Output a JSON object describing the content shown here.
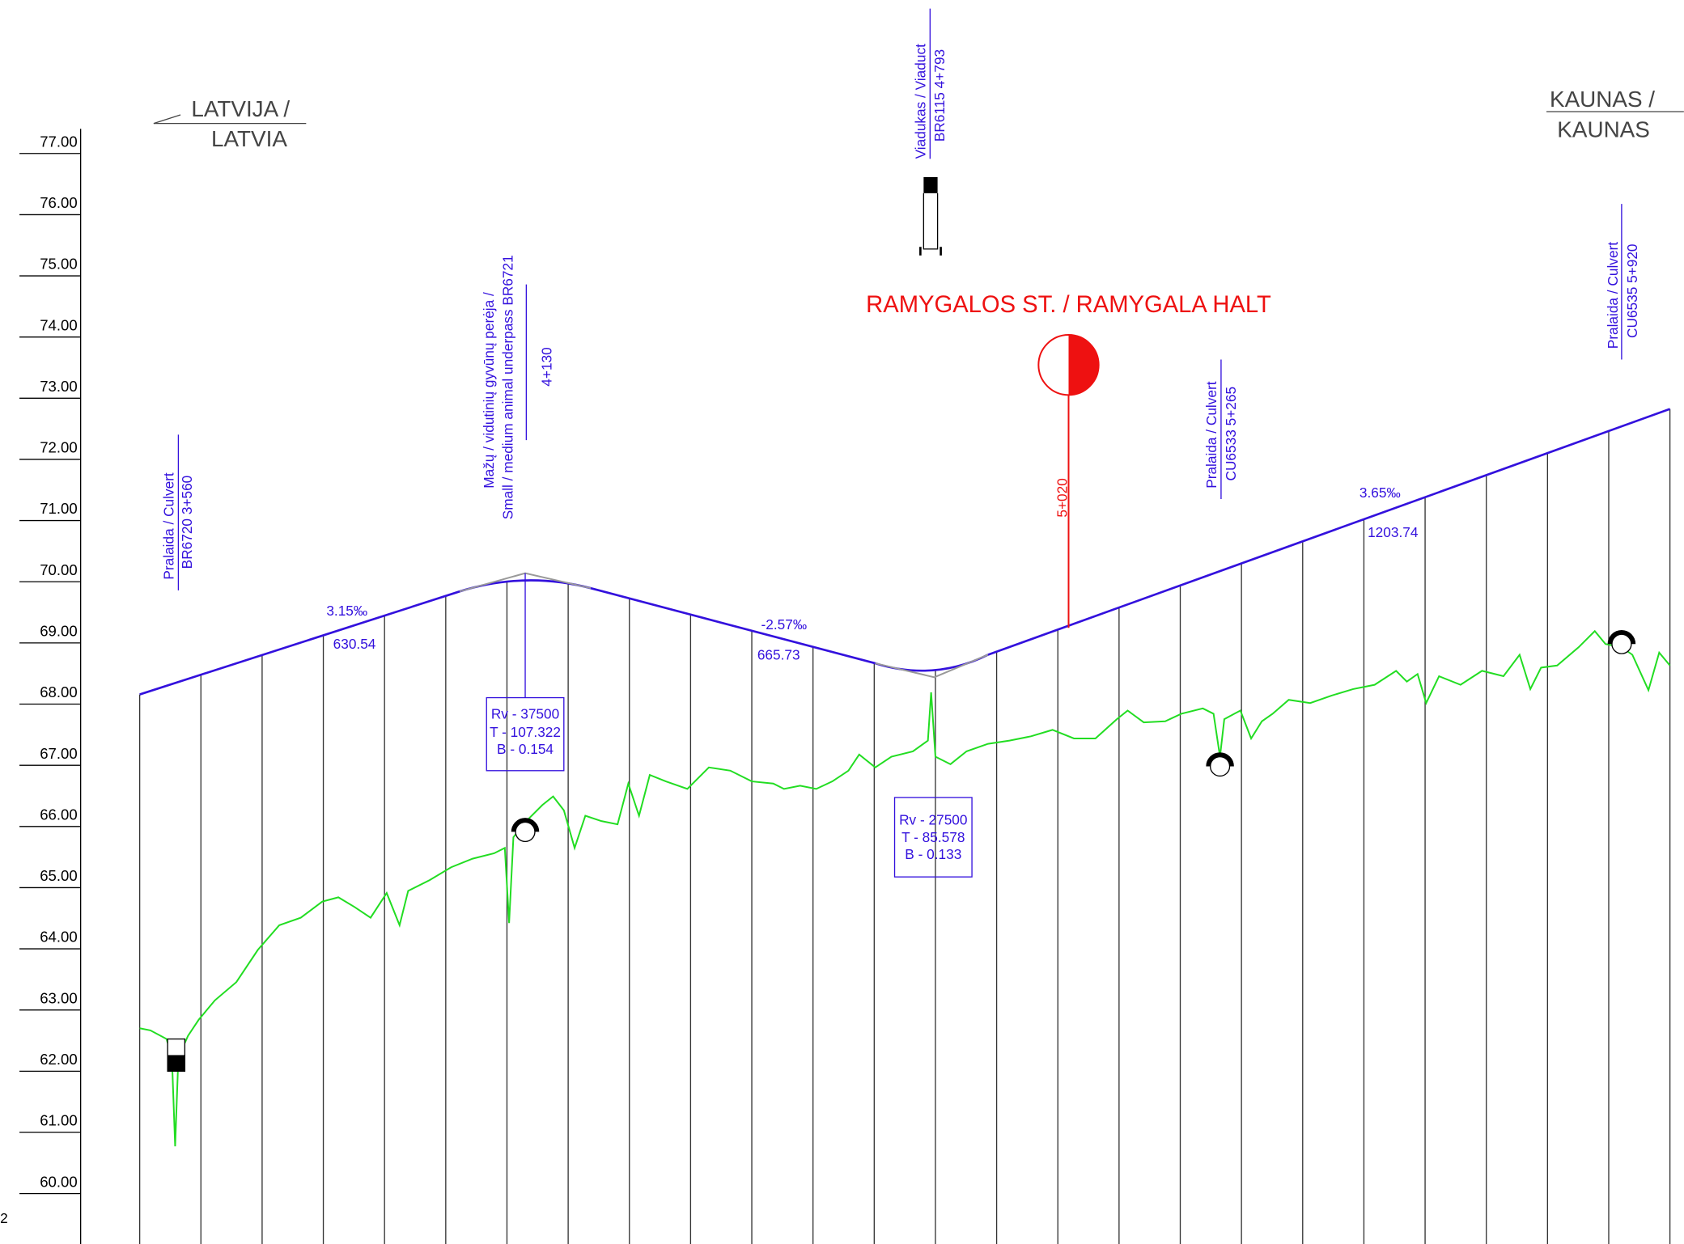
{
  "elevation_labels": [
    "77.00",
    "76.00",
    "75.00",
    "74.00",
    "73.00",
    "72.00",
    "71.00",
    "70.00",
    "69.00",
    "68.00",
    "67.00",
    "66.00",
    "65.00",
    "64.00",
    "63.00",
    "62.00",
    "61.00",
    "60.00"
  ],
  "left_direction": [
    "LATVIJA /",
    "LATVIA"
  ],
  "right_direction": [
    "KAUNAS /",
    "KAUNAS"
  ],
  "structures": [
    {
      "lines": [
        "Pralaida / Culvert",
        "BR6720 3+560"
      ]
    },
    {
      "lines": [
        "Mažų / vidutinių gyvūnų perėja /",
        "Small / medium animal underpass BR6721"
      ],
      "chainage": "4+130"
    },
    {
      "lines": [
        "Viadukas / Viaduct",
        "BR6115 4+793"
      ]
    },
    {
      "lines": [
        "Pralaida / Culvert",
        "CU6533 5+265"
      ]
    },
    {
      "lines": [
        "Pralaida / Culvert",
        "CU6535 5+920"
      ]
    }
  ],
  "station": {
    "name": "RAMYGALOS ST. / RAMYGALA HALT",
    "chainage": "5+020"
  },
  "gradients": [
    {
      "grade": "3.15‰",
      "length": "630.54"
    },
    {
      "grade": "-2.57‰",
      "length": "665.73"
    },
    {
      "grade": "3.65‰",
      "length": "1203.74"
    }
  ],
  "vertical_curves": [
    {
      "lines": [
        "Rv - 37500",
        "T - 107.322",
        "B - 0.154"
      ]
    },
    {
      "lines": [
        "Rv - 27500",
        "T - 85.578",
        "B - 0.133"
      ]
    }
  ],
  "page_number": "2"
}
